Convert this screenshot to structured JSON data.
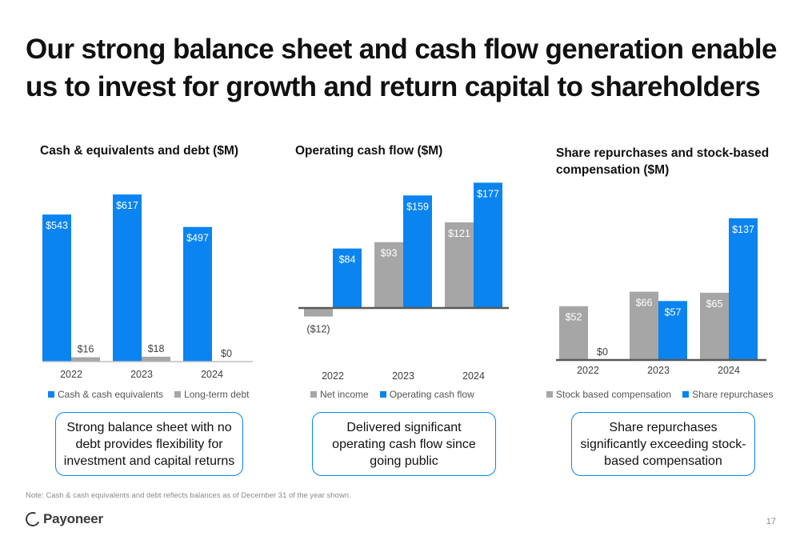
{
  "title": "Our strong balance sheet and cash flow generation enable us to invest for growth and return capital to shareholders",
  "chart_data": [
    {
      "type": "bar",
      "title": "Cash & equivalents and debt ($M)",
      "categories": [
        "2022",
        "2023",
        "2024"
      ],
      "series": [
        {
          "name": "Cash & cash equivalents",
          "color": "#0a84f0",
          "values": [
            543,
            617,
            497
          ],
          "labels": [
            "$543",
            "$617",
            "$497"
          ]
        },
        {
          "name": "Long-term debt",
          "color": "#a6a6a6",
          "values": [
            16,
            18,
            0
          ],
          "labels": [
            "$16",
            "$18",
            "$0"
          ]
        }
      ],
      "ylim": [
        0,
        700
      ],
      "grid": false,
      "legend": "bottom"
    },
    {
      "type": "bar",
      "title": "Operating cash flow ($M)",
      "categories": [
        "2022",
        "2023",
        "2024"
      ],
      "series": [
        {
          "name": "Net income",
          "color": "#a6a6a6",
          "values": [
            -12,
            93,
            121
          ],
          "labels": [
            "($12)",
            "$93",
            "$121"
          ]
        },
        {
          "name": "Operating cash flow",
          "color": "#0a84f0",
          "values": [
            84,
            159,
            177
          ],
          "labels": [
            "$84",
            "$159",
            "$177"
          ]
        }
      ],
      "ylim": [
        -20,
        200
      ],
      "grid": false,
      "legend": "bottom"
    },
    {
      "type": "bar",
      "title": "Share repurchases and stock-based compensation ($M)",
      "categories": [
        "2022",
        "2023",
        "2024"
      ],
      "series": [
        {
          "name": "Stock based compensation",
          "color": "#a6a6a6",
          "values": [
            52,
            66,
            65
          ],
          "labels": [
            "$52",
            "$66",
            "$65"
          ]
        },
        {
          "name": "Share repurchases",
          "color": "#0a84f0",
          "values": [
            0,
            57,
            137
          ],
          "labels": [
            "$0",
            "$57",
            "$137"
          ]
        }
      ],
      "ylim": [
        0,
        150
      ],
      "grid": false,
      "legend": "bottom"
    }
  ],
  "callouts": [
    "Strong balance sheet with no debt provides flexibility for investment and capital returns",
    "Delivered significant operating cash flow since going public",
    "Share repurchases significantly exceeding stock-based compensation"
  ],
  "footnote": "Note: Cash & cash equivalents and debt reflects balances as of December 31 of the year shown.",
  "logo_text": "Payoneer",
  "page_number": "17"
}
